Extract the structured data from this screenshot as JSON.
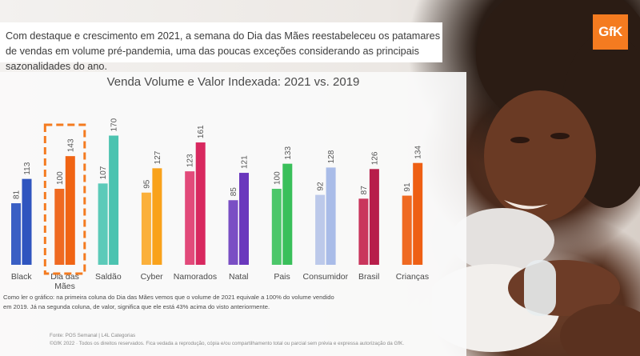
{
  "header": {
    "text": "Com destaque e crescimento em 2021, a semana do Dia das Mães reestabeleceu os patamares de vendas em volume pré-pandemia, uma das poucas exceções considerando as principais sazonalidades do ano."
  },
  "logo": {
    "text": "GfK",
    "color": "#f47b20"
  },
  "chart_data": {
    "type": "bar",
    "title": "Venda Volume e Valor Indexada: 2021 vs. 2019",
    "xlabel": "",
    "ylabel": "",
    "ylim": [
      0,
      180
    ],
    "grid": false,
    "legend": "none",
    "highlight_category": "Dia das Mães",
    "highlight_color": "#f47b20",
    "categories": [
      "Black",
      "Dia das Mães",
      "Saldão",
      "Cyber",
      "Namorados",
      "Natal",
      "Pais",
      "Consumidor",
      "Brasil",
      "Crianças"
    ],
    "series": [
      {
        "values": [
          81,
          100,
          107,
          95,
          123,
          85,
          100,
          92,
          87,
          91
        ]
      },
      {
        "values": [
          113,
          143,
          170,
          127,
          161,
          121,
          133,
          128,
          126,
          134
        ]
      }
    ],
    "colors": [
      [
        "#3a5fc4",
        "#2f55bf"
      ],
      [
        "#ef6a22",
        "#f06414"
      ],
      [
        "#5ccab9",
        "#4cc3b0"
      ],
      [
        "#fbb03b",
        "#f9a21b"
      ],
      [
        "#e24a7a",
        "#d8285f"
      ],
      [
        "#7a4fc4",
        "#6a38bd"
      ],
      [
        "#4cc76a",
        "#39bf5a"
      ],
      [
        "#bcc9ea",
        "#a9bce8"
      ],
      [
        "#c9365c",
        "#b71e4a"
      ],
      [
        "#ef6a22",
        "#ee5f14"
      ]
    ]
  },
  "footnote": {
    "note": "Como ler o gráfico: na primeira coluna do Dia das Mães vemos que o volume de 2021 equivale a 100% do volume vendido em 2019. Já na segunda coluna, de valor, significa que ele está 43% acima do visto anteriormente.",
    "source": "Fonte: POS Semanal | L4L Categorias",
    "copyright": "©GfK 2022 · Todos os direitos reservados. Fica vedada a reprodução, cópia e/ou compartilhamento total ou parcial sem prévia e expressa autorização da GfK."
  }
}
